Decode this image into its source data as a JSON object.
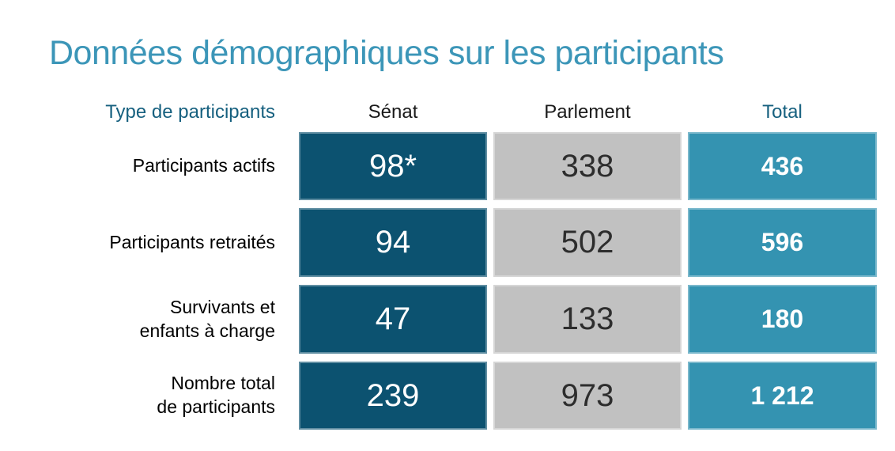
{
  "title": {
    "text": "Données démographiques sur les participants"
  },
  "colors": {
    "background": "#ffffff",
    "title": "#3c96b8",
    "header_accent": "#16607f",
    "header_text": "#1a1a1a",
    "label_text": "#000000",
    "senat_cell": "#0c5270",
    "parlement_cell": "#c1c1c1",
    "total_cell": "#3493b1",
    "parlement_text": "#2d2d2d",
    "cell_text_light": "#ffffff"
  },
  "table": {
    "corner_header": "Type de participants",
    "col_headers": [
      "Sénat",
      "Parlement",
      "Total"
    ],
    "rows": [
      {
        "label": "Participants actifs",
        "senat": "98*",
        "parlement": "338",
        "total": "436"
      },
      {
        "label": "Participants retraités",
        "senat": "94",
        "parlement": "502",
        "total": "596"
      },
      {
        "label": "Survivants et\nenfants à charge",
        "senat": "47",
        "parlement": "133",
        "total": "180"
      },
      {
        "label": "Nombre total\nde participants",
        "senat": "239",
        "parlement": "973",
        "total": "1 212"
      }
    ]
  },
  "chart_data": {
    "type": "table",
    "title": "Données démographiques sur les participants",
    "row_header": "Type de participants",
    "columns": [
      "Sénat",
      "Parlement",
      "Total"
    ],
    "rows": [
      {
        "label": "Participants actifs",
        "values": [
          "98*",
          "338",
          "436"
        ]
      },
      {
        "label": "Participants retraités",
        "values": [
          "94",
          "502",
          "596"
        ]
      },
      {
        "label": "Survivants et enfants à charge",
        "values": [
          "47",
          "133",
          "180"
        ]
      },
      {
        "label": "Nombre total de participants",
        "values": [
          "239",
          "973",
          "1 212"
        ]
      }
    ],
    "numeric_rows": [
      {
        "label": "Participants actifs",
        "senat": 98,
        "parlement": 338,
        "total": 436
      },
      {
        "label": "Participants retraités",
        "senat": 94,
        "parlement": 502,
        "total": 596
      },
      {
        "label": "Survivants et enfants à charge",
        "senat": 47,
        "parlement": 133,
        "total": 180
      },
      {
        "label": "Nombre total de participants",
        "senat": 239,
        "parlement": 973,
        "total": 1212
      }
    ],
    "column_colors": {
      "senat": "#0c5270",
      "parlement": "#c1c1c1",
      "total": "#3493b1"
    }
  }
}
